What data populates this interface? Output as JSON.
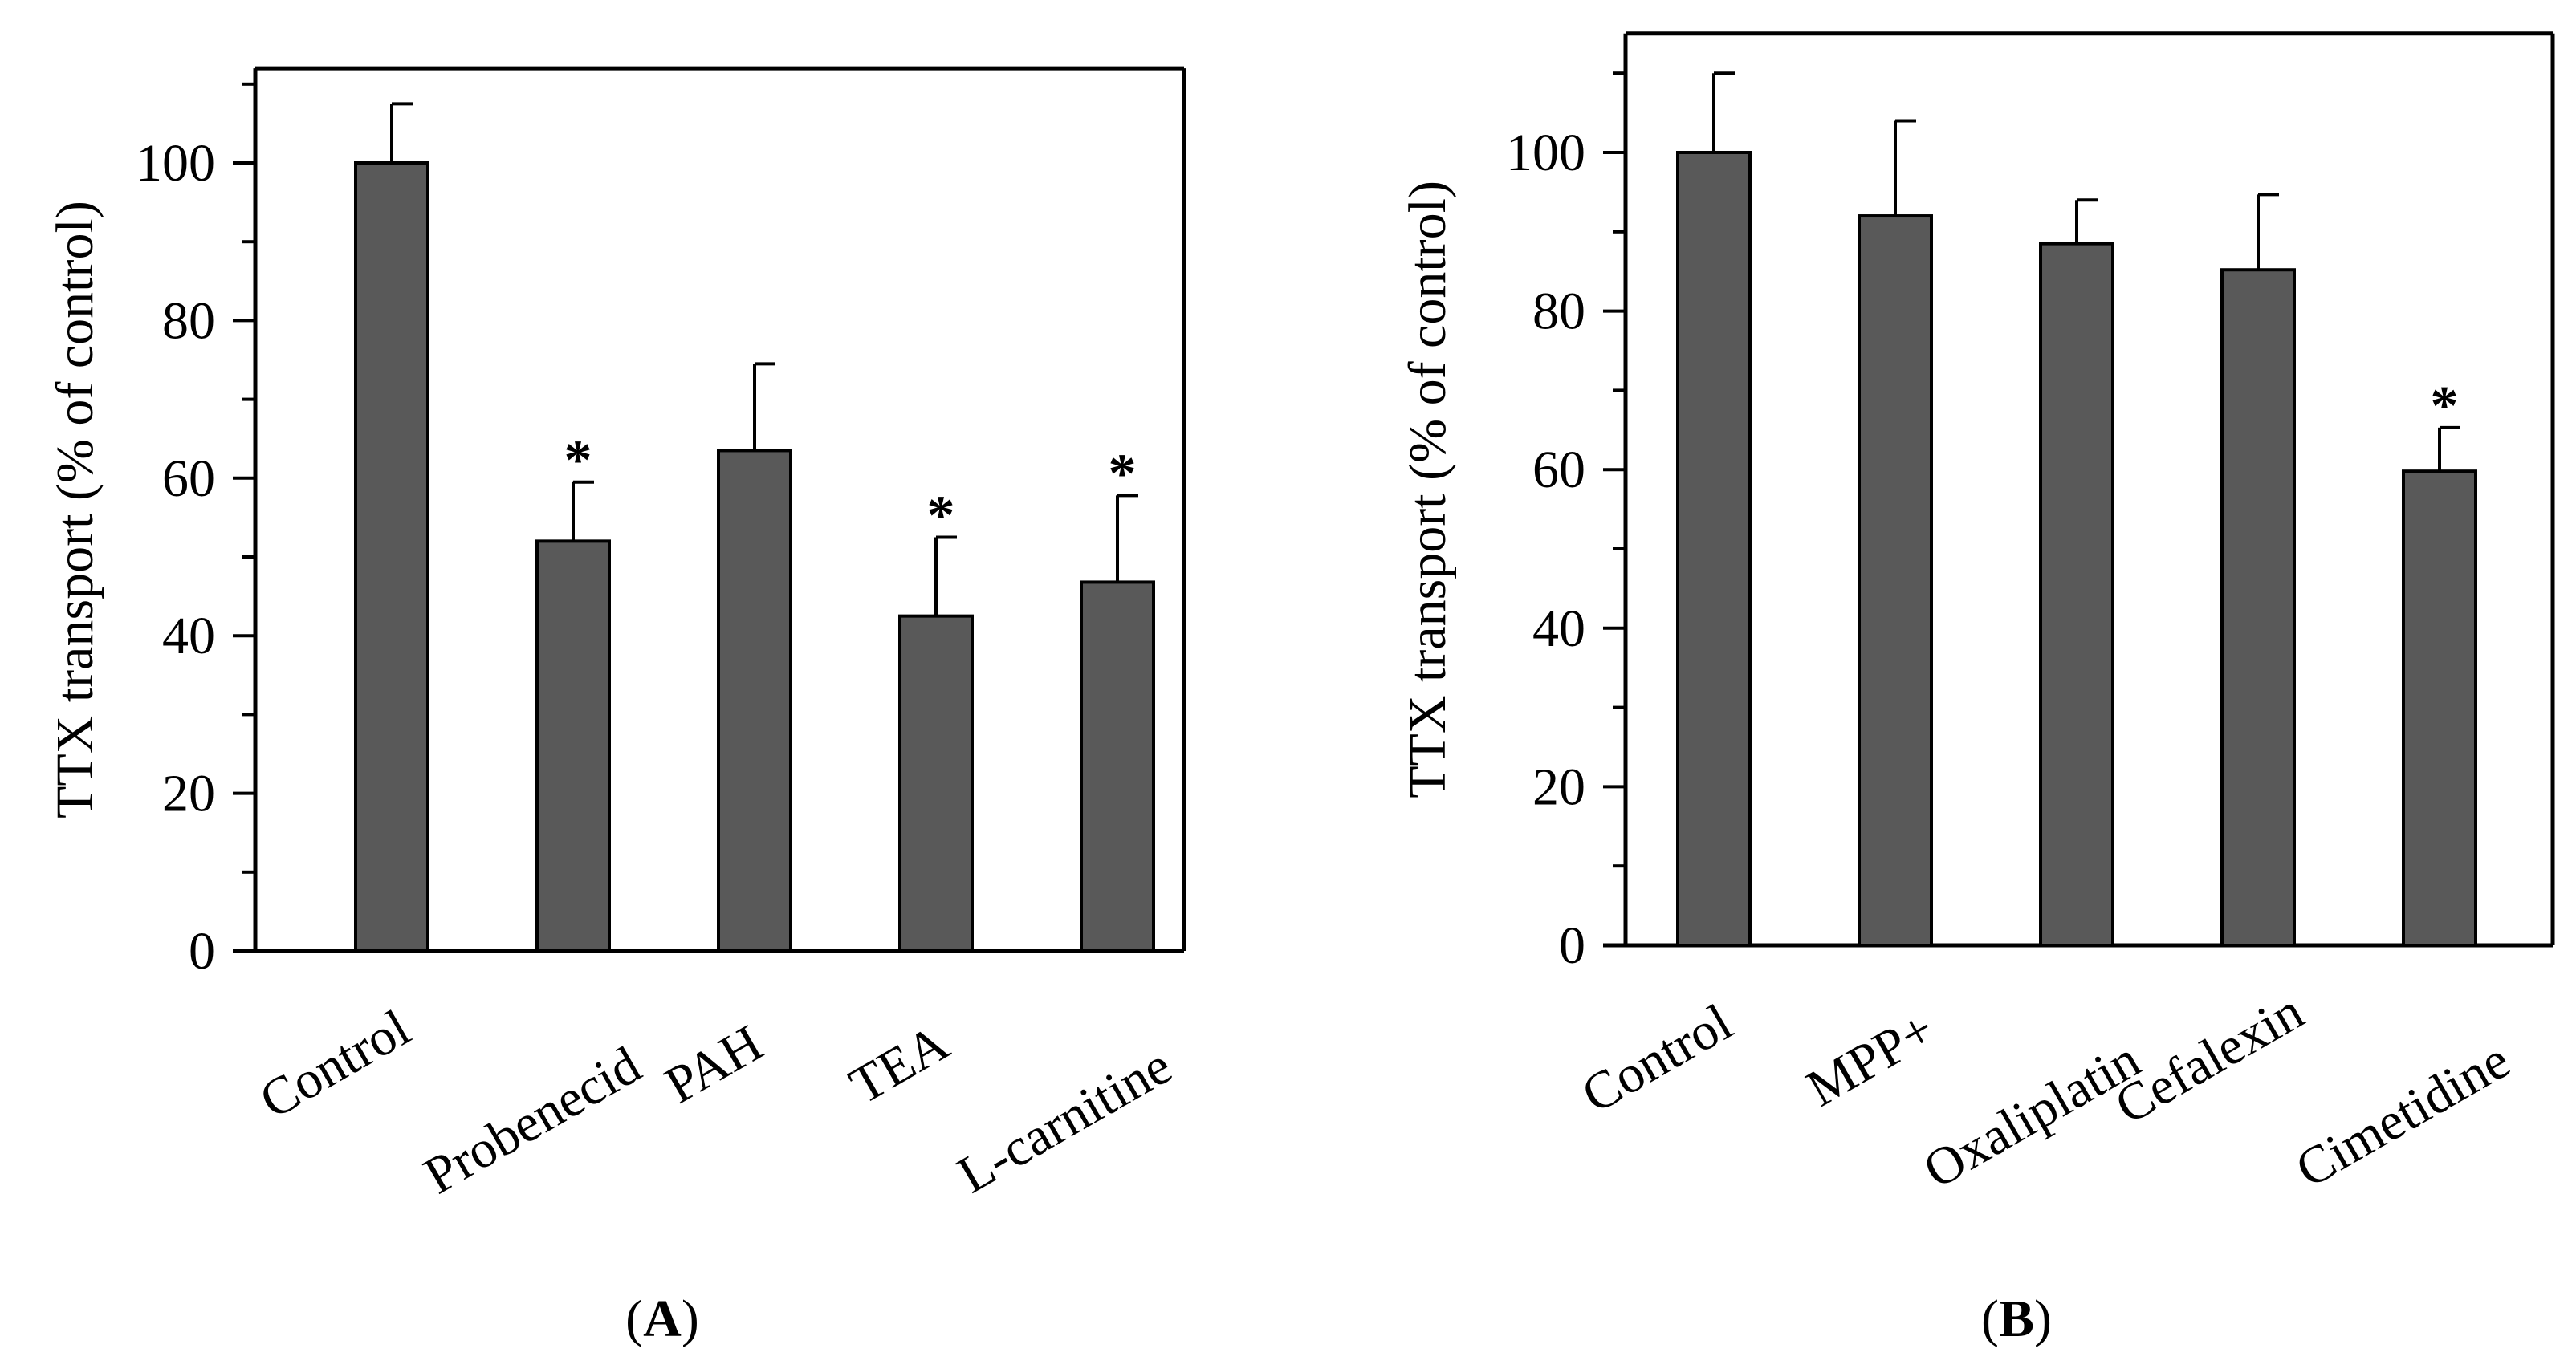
{
  "colors": {
    "bar": "#595959",
    "axis": "#000000",
    "background": "#ffffff"
  },
  "chart_data": [
    {
      "type": "bar",
      "panel_label": "A",
      "title": "",
      "xlabel": "",
      "ylabel": "TTX transport (% of control)",
      "ylim": [
        0,
        112
      ],
      "yticks": [
        0,
        20,
        40,
        60,
        80,
        100
      ],
      "grid": false,
      "categories": [
        "Control",
        "Probenecid",
        "PAH",
        "TEA",
        "L-carnitine"
      ],
      "values": [
        100,
        52,
        63.5,
        42.5,
        46.8
      ],
      "errors": [
        7.5,
        7.5,
        11,
        10,
        11
      ],
      "significant": [
        false,
        true,
        false,
        true,
        true
      ],
      "significance_marker": "*"
    },
    {
      "type": "bar",
      "panel_label": "B",
      "title": "",
      "xlabel": "",
      "ylabel": "TTX transport (% of control)",
      "ylim": [
        0,
        115
      ],
      "yticks": [
        0,
        20,
        40,
        60,
        80,
        100
      ],
      "grid": false,
      "categories": [
        "Control",
        "MPP+",
        "Oxaliplatin",
        "Cefalexin",
        "Cimetidine"
      ],
      "values": [
        100,
        92,
        88.5,
        85.2,
        59.8
      ],
      "errors": [
        10,
        12,
        5.5,
        9.5,
        5.5
      ],
      "significant": [
        false,
        false,
        false,
        false,
        true
      ],
      "significance_marker": "*"
    }
  ]
}
